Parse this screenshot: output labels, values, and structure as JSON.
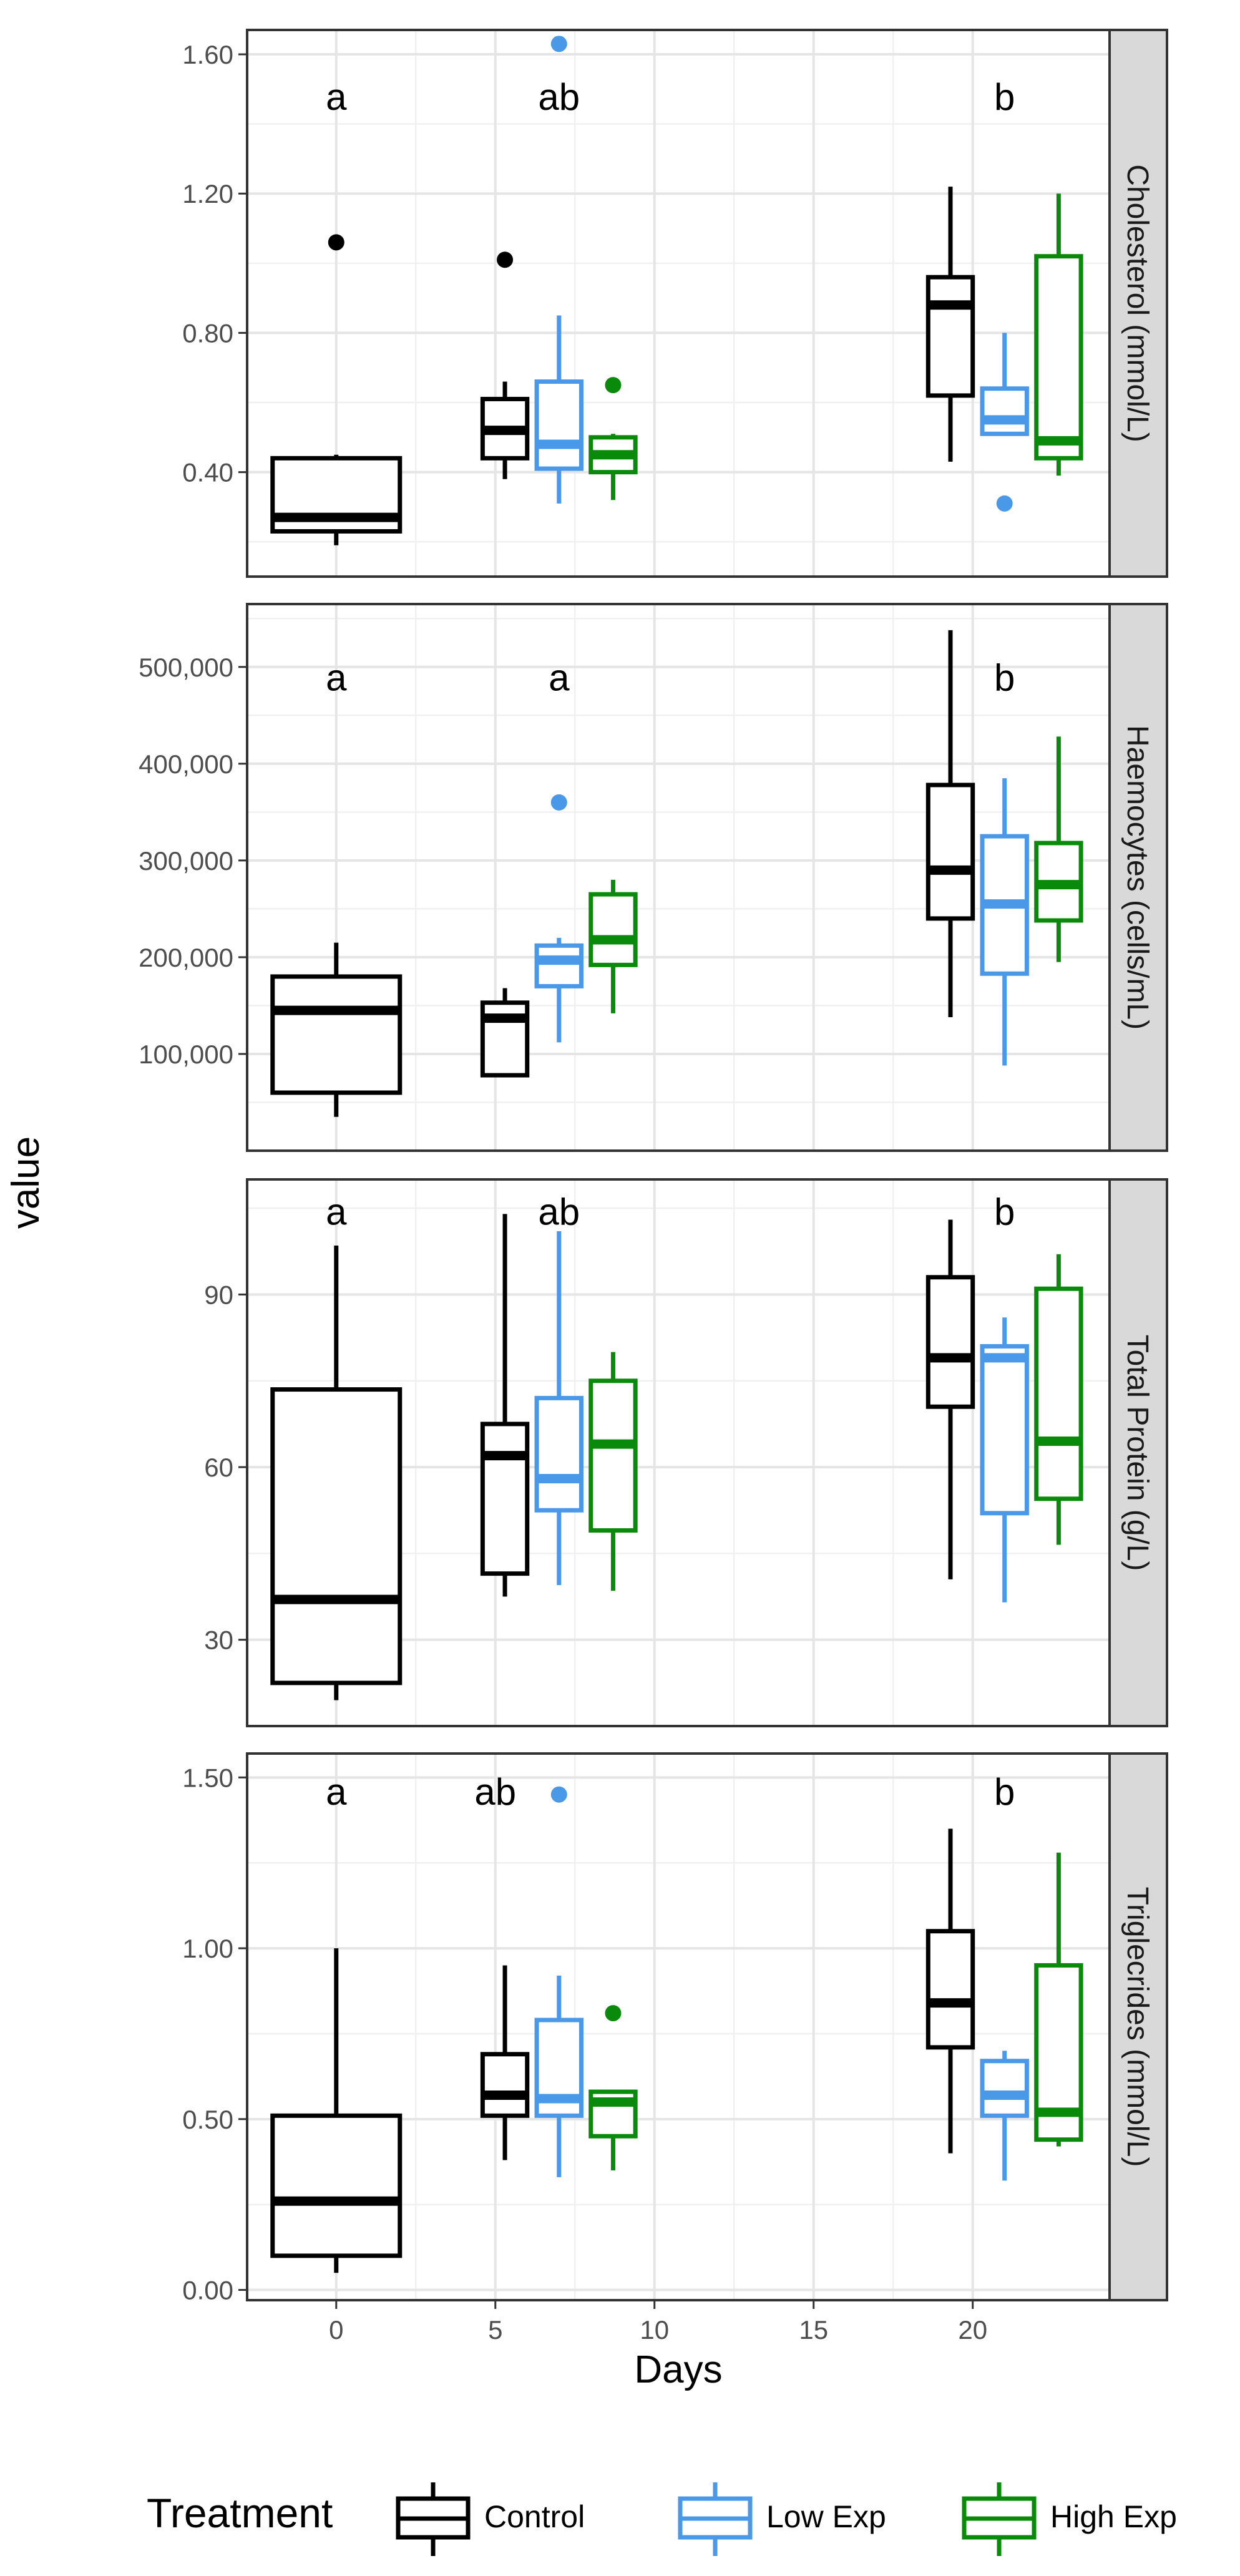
{
  "chart_data": {
    "type": "boxplot",
    "xlabel": "Days",
    "ylabel": "value",
    "x_ticks": [
      0,
      5,
      10,
      15,
      20
    ],
    "xlim": [
      -2.8,
      24.3
    ],
    "legend": {
      "title": "Treatment",
      "position": "bottom",
      "entries": [
        {
          "name": "Control",
          "color": "#000000"
        },
        {
          "name": "Low Exp",
          "color": "#4a98e8"
        },
        {
          "name": "High Exp",
          "color": "#0a8a0a"
        }
      ]
    },
    "panels": [
      {
        "strip": "Cholesterol (mmol/L)",
        "ylim": [
          0.1,
          1.67
        ],
        "y_ticks": [
          0.4,
          0.8,
          1.2,
          1.6
        ],
        "y_tick_labels": [
          "0.40",
          "0.80",
          "1.20",
          "1.60"
        ],
        "significance": [
          {
            "x": 0,
            "y": 1.48,
            "label": "a"
          },
          {
            "x": 7,
            "y": 1.48,
            "label": "ab"
          },
          {
            "x": 21,
            "y": 1.48,
            "label": "b"
          }
        ],
        "boxes": [
          {
            "treatment": "Control",
            "x": 0,
            "halfwidth": 2.0,
            "whisker_low": 0.19,
            "q1": 0.23,
            "median": 0.27,
            "q3": 0.44,
            "whisker_high": 0.45,
            "outliers": [
              1.06
            ]
          },
          {
            "treatment": "Control",
            "x": 5.3,
            "halfwidth": 0.7,
            "whisker_low": 0.38,
            "q1": 0.44,
            "median": 0.52,
            "q3": 0.61,
            "whisker_high": 0.66,
            "outliers": [
              1.01
            ]
          },
          {
            "treatment": "Low Exp",
            "x": 7.0,
            "halfwidth": 0.7,
            "whisker_low": 0.31,
            "q1": 0.41,
            "median": 0.48,
            "q3": 0.66,
            "whisker_high": 0.85,
            "outliers": [
              1.63
            ]
          },
          {
            "treatment": "High Exp",
            "x": 8.7,
            "halfwidth": 0.7,
            "whisker_low": 0.32,
            "q1": 0.4,
            "median": 0.45,
            "q3": 0.5,
            "whisker_high": 0.51,
            "outliers": [
              0.65
            ]
          },
          {
            "treatment": "Control",
            "x": 19.3,
            "halfwidth": 0.7,
            "whisker_low": 0.43,
            "q1": 0.62,
            "median": 0.88,
            "q3": 0.96,
            "whisker_high": 1.22,
            "outliers": []
          },
          {
            "treatment": "Low Exp",
            "x": 21.0,
            "halfwidth": 0.7,
            "whisker_low": 0.51,
            "q1": 0.51,
            "median": 0.55,
            "q3": 0.64,
            "whisker_high": 0.8,
            "outliers": [
              0.31
            ]
          },
          {
            "treatment": "High Exp",
            "x": 22.7,
            "halfwidth": 0.7,
            "whisker_low": 0.39,
            "q1": 0.44,
            "median": 0.49,
            "q3": 1.02,
            "whisker_high": 1.2,
            "outliers": []
          }
        ]
      },
      {
        "strip": "Haemocytes (cells/mL)",
        "ylim": [
          0,
          565000
        ],
        "y_ticks": [
          100000,
          200000,
          300000,
          400000,
          500000
        ],
        "y_tick_labels": [
          "100,000",
          "200,000",
          "300,000",
          "400,000",
          "500,000"
        ],
        "significance": [
          {
            "x": 0,
            "y": 490000,
            "label": "a"
          },
          {
            "x": 7,
            "y": 490000,
            "label": "a"
          },
          {
            "x": 21,
            "y": 490000,
            "label": "b"
          }
        ],
        "boxes": [
          {
            "treatment": "Control",
            "x": 0,
            "halfwidth": 2.0,
            "whisker_low": 35000,
            "q1": 60000,
            "median": 145000,
            "q3": 180000,
            "whisker_high": 215000,
            "outliers": []
          },
          {
            "treatment": "Control",
            "x": 5.3,
            "halfwidth": 0.7,
            "whisker_low": 78000,
            "q1": 78000,
            "median": 137000,
            "q3": 153000,
            "whisker_high": 168000,
            "outliers": []
          },
          {
            "treatment": "Low Exp",
            "x": 7.0,
            "halfwidth": 0.7,
            "whisker_low": 112000,
            "q1": 170000,
            "median": 197000,
            "q3": 212000,
            "whisker_high": 220000,
            "outliers": [
              360000
            ]
          },
          {
            "treatment": "High Exp",
            "x": 8.7,
            "halfwidth": 0.7,
            "whisker_low": 142000,
            "q1": 192000,
            "median": 218000,
            "q3": 265000,
            "whisker_high": 280000,
            "outliers": []
          },
          {
            "treatment": "Control",
            "x": 19.3,
            "halfwidth": 0.7,
            "whisker_low": 138000,
            "q1": 240000,
            "median": 290000,
            "q3": 378000,
            "whisker_high": 538000,
            "outliers": []
          },
          {
            "treatment": "Low Exp",
            "x": 21.0,
            "halfwidth": 0.7,
            "whisker_low": 88000,
            "q1": 183000,
            "median": 255000,
            "q3": 325000,
            "whisker_high": 385000,
            "outliers": []
          },
          {
            "treatment": "High Exp",
            "x": 22.7,
            "halfwidth": 0.7,
            "whisker_low": 195000,
            "q1": 238000,
            "median": 275000,
            "q3": 318000,
            "whisker_high": 428000,
            "outliers": []
          }
        ]
      },
      {
        "strip": "Total Protein (g/L)",
        "ylim": [
          15,
          110
        ],
        "y_ticks": [
          30,
          60,
          90
        ],
        "y_tick_labels": [
          "30",
          "60",
          "90"
        ],
        "significance": [
          {
            "x": 0,
            "y": 104.5,
            "label": "a"
          },
          {
            "x": 7,
            "y": 104.5,
            "label": "ab"
          },
          {
            "x": 21,
            "y": 104.5,
            "label": "b"
          }
        ],
        "boxes": [
          {
            "treatment": "Control",
            "x": 0,
            "halfwidth": 2.0,
            "whisker_low": 19.5,
            "q1": 22.5,
            "median": 37.0,
            "q3": 73.5,
            "whisker_high": 98.5,
            "outliers": []
          },
          {
            "treatment": "Control",
            "x": 5.3,
            "halfwidth": 0.7,
            "whisker_low": 37.5,
            "q1": 41.5,
            "median": 62.0,
            "q3": 67.5,
            "whisker_high": 104.0,
            "outliers": []
          },
          {
            "treatment": "Low Exp",
            "x": 7.0,
            "halfwidth": 0.7,
            "whisker_low": 39.5,
            "q1": 52.5,
            "median": 58.0,
            "q3": 72.0,
            "whisker_high": 101.0,
            "outliers": []
          },
          {
            "treatment": "High Exp",
            "x": 8.7,
            "halfwidth": 0.7,
            "whisker_low": 38.5,
            "q1": 49.0,
            "median": 64.0,
            "q3": 75.0,
            "whisker_high": 80.0,
            "outliers": []
          },
          {
            "treatment": "Control",
            "x": 19.3,
            "halfwidth": 0.7,
            "whisker_low": 40.5,
            "q1": 70.5,
            "median": 79.0,
            "q3": 93.0,
            "whisker_high": 103.0,
            "outliers": []
          },
          {
            "treatment": "Low Exp",
            "x": 21.0,
            "halfwidth": 0.7,
            "whisker_low": 36.5,
            "q1": 52.0,
            "median": 79.0,
            "q3": 81.0,
            "whisker_high": 86.0,
            "outliers": []
          },
          {
            "treatment": "High Exp",
            "x": 22.7,
            "halfwidth": 0.7,
            "whisker_low": 46.5,
            "q1": 54.5,
            "median": 64.5,
            "q3": 91.0,
            "whisker_high": 97.0,
            "outliers": []
          }
        ]
      },
      {
        "strip": "Triglecrides (mmol/L)",
        "ylim": [
          -0.03,
          1.57
        ],
        "y_ticks": [
          0,
          0.5,
          1.0,
          1.5
        ],
        "y_tick_labels": [
          "0.00",
          "0.50",
          "1.00",
          "1.50"
        ],
        "significance": [
          {
            "x": 0,
            "y": 1.46,
            "label": "a"
          },
          {
            "x": 5,
            "y": 1.46,
            "label": "ab"
          },
          {
            "x": 21,
            "y": 1.46,
            "label": "b"
          }
        ],
        "boxes": [
          {
            "treatment": "Control",
            "x": 0,
            "halfwidth": 2.0,
            "whisker_low": 0.05,
            "q1": 0.1,
            "median": 0.26,
            "q3": 0.51,
            "whisker_high": 1.0,
            "outliers": []
          },
          {
            "treatment": "Control",
            "x": 5.3,
            "halfwidth": 0.7,
            "whisker_low": 0.38,
            "q1": 0.51,
            "median": 0.57,
            "q3": 0.69,
            "whisker_high": 0.95,
            "outliers": []
          },
          {
            "treatment": "Low Exp",
            "x": 7.0,
            "halfwidth": 0.7,
            "whisker_low": 0.33,
            "q1": 0.51,
            "median": 0.56,
            "q3": 0.79,
            "whisker_high": 0.92,
            "outliers": [
              1.45
            ]
          },
          {
            "treatment": "High Exp",
            "x": 8.7,
            "halfwidth": 0.7,
            "whisker_low": 0.35,
            "q1": 0.45,
            "median": 0.55,
            "q3": 0.58,
            "whisker_high": 0.58,
            "outliers": [
              0.81
            ]
          },
          {
            "treatment": "Control",
            "x": 19.3,
            "halfwidth": 0.7,
            "whisker_low": 0.4,
            "q1": 0.71,
            "median": 0.84,
            "q3": 1.05,
            "whisker_high": 1.35,
            "outliers": []
          },
          {
            "treatment": "Low Exp",
            "x": 21.0,
            "halfwidth": 0.7,
            "whisker_low": 0.32,
            "q1": 0.51,
            "median": 0.57,
            "q3": 0.67,
            "whisker_high": 0.7,
            "outliers": []
          },
          {
            "treatment": "High Exp",
            "x": 22.7,
            "halfwidth": 0.7,
            "whisker_low": 0.42,
            "q1": 0.44,
            "median": 0.52,
            "q3": 0.95,
            "whisker_high": 1.28,
            "outliers": []
          }
        ]
      }
    ]
  }
}
